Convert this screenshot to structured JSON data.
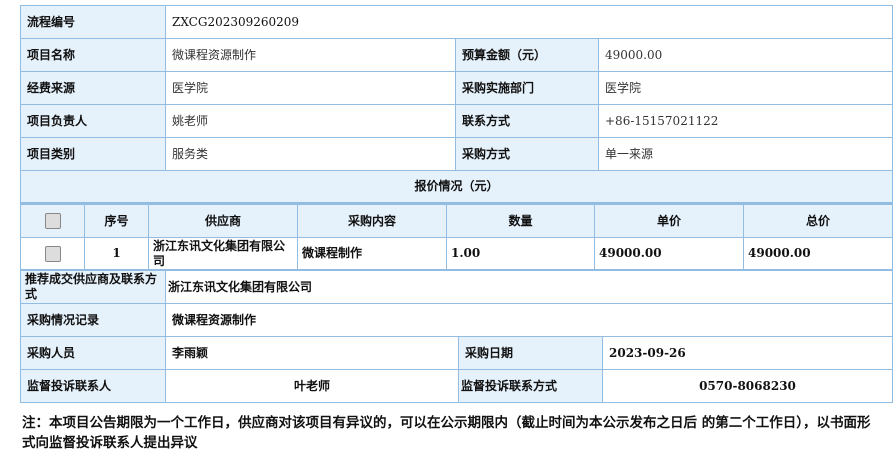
{
  "info": {
    "flow_no_label": "流程编号",
    "flow_no": "ZXCG202309260209",
    "project_name_label": "项目名称",
    "project_name": "微课程资源制作",
    "budget_label": "预算金额（元）",
    "budget": "49000.00",
    "fund_source_label": "经费来源",
    "fund_source": "医学院",
    "dept_label": "采购实施部门",
    "dept": "医学院",
    "leader_label": "项目负责人",
    "leader": "姚老师",
    "contact_label": "联系方式",
    "contact": "+86-15157021122",
    "category_label": "项目类别",
    "category": "服务类",
    "method_label": "采购方式",
    "method": "单一来源"
  },
  "quote": {
    "title": "报价情况（元）",
    "headers": [
      "序号",
      "供应商",
      "采购内容",
      "数量",
      "单价",
      "总价"
    ],
    "rows": [
      {
        "no": "1",
        "supplier": "浙江东讯文化集团有限公司",
        "content": "微课程制作",
        "qty": "1.00",
        "unit_price": "49000.00",
        "total": "49000.00"
      }
    ]
  },
  "result": {
    "recommend_label": "推荐成交供应商及联系方式",
    "recommend": "浙江东讯文化集团有限公司",
    "record_label": "采购情况记录",
    "record": "微课程资源制作",
    "buyer_label": "采购人员",
    "buyer": "李雨颖",
    "date_label": "采购日期",
    "date": "2023-09-26",
    "supervisor_label": "监督投诉联系人",
    "supervisor": "叶老师",
    "supervisor_contact_label": "监督投诉联系方式",
    "supervisor_contact": "0570-8068230"
  },
  "note": "注：本项目公告期限为一个工作日，供应商对该项目有异议的，可以在公示期限内（截止时间为本公示发布之日后 的第二个工作日），以书面形式向监督投诉联系人提出异议"
}
